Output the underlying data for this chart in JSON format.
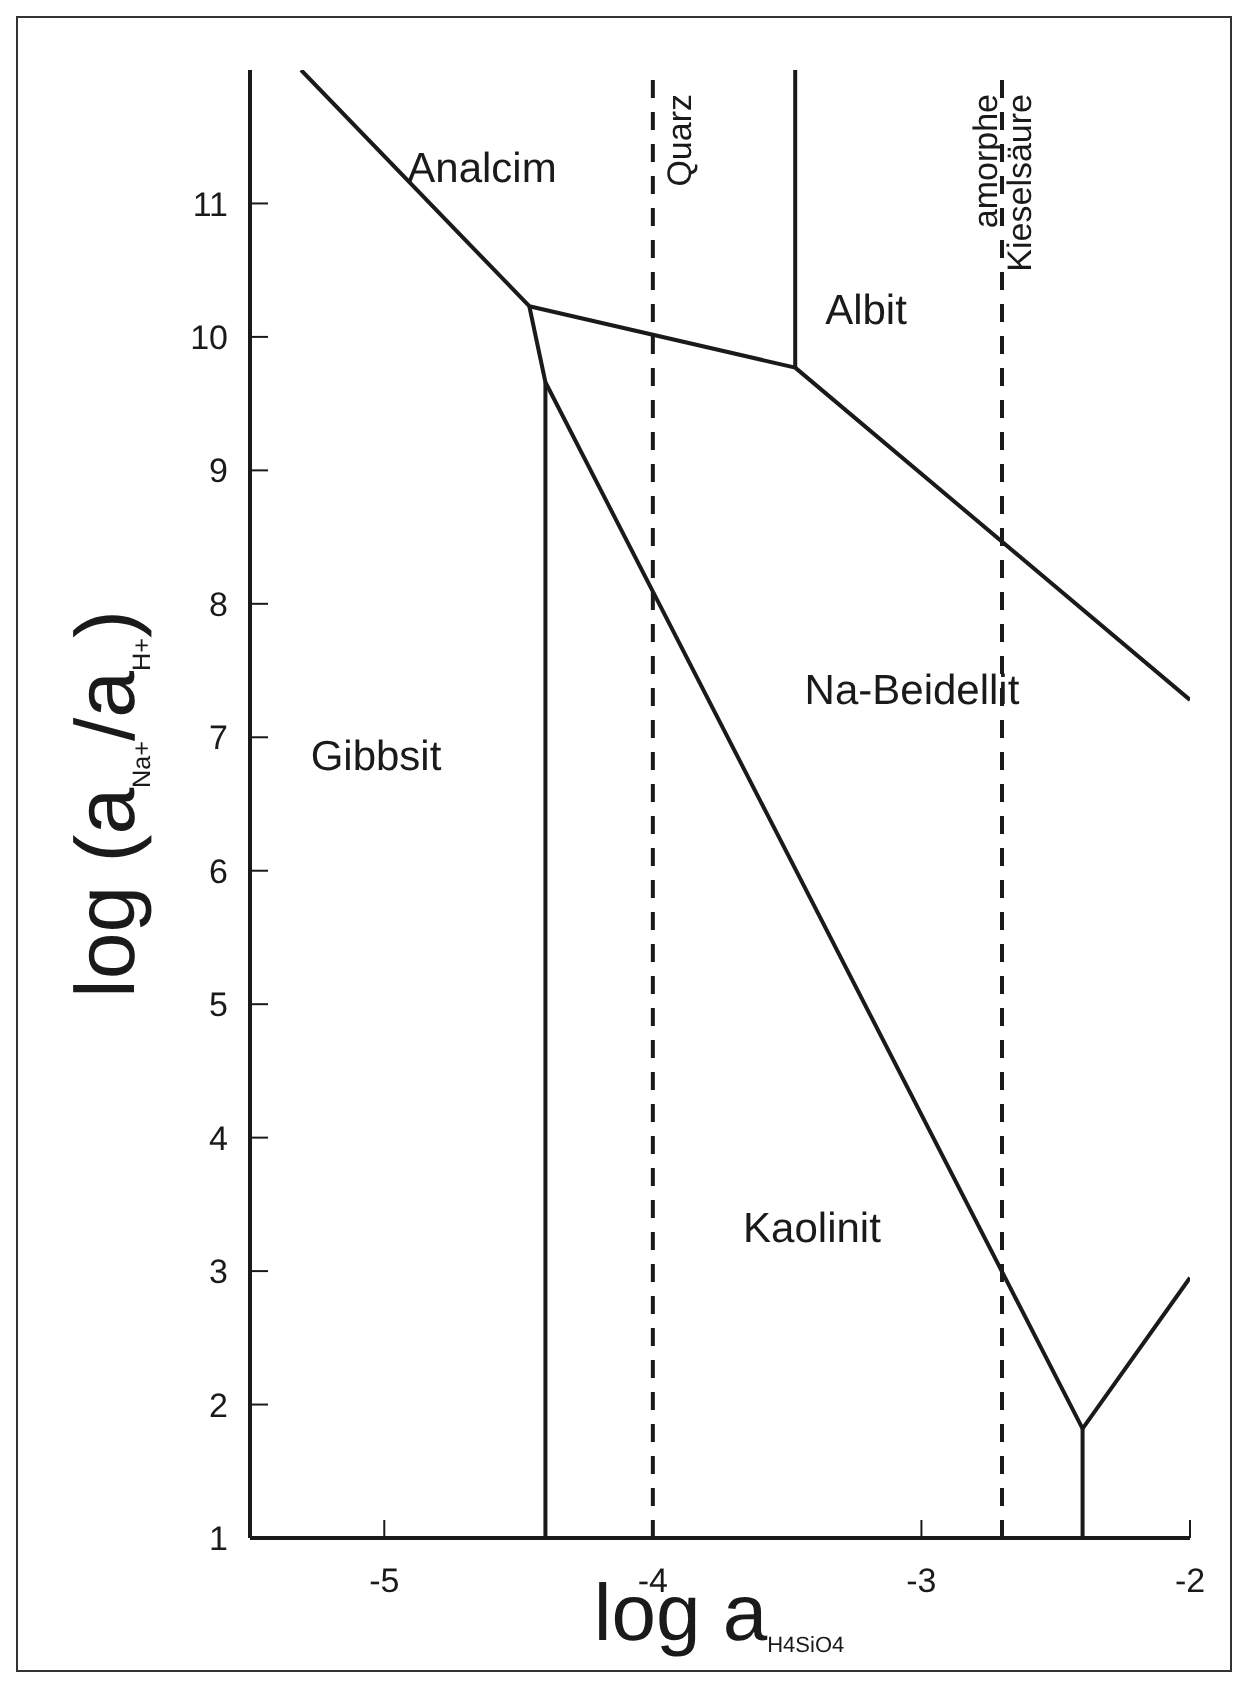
{
  "chart_data": {
    "type": "line",
    "xlabel": "log a$_{H4SiO4}$",
    "ylabel": "log (a$_{Na+}$/a$_{H+}$)",
    "xlim": [
      -5.5,
      -2
    ],
    "ylim": [
      1,
      12
    ],
    "xticks": [
      -5,
      -4,
      -3,
      -2
    ],
    "yticks": [
      1,
      2,
      3,
      4,
      5,
      6,
      7,
      8,
      9,
      10,
      11
    ],
    "marker": "none",
    "line_style": "solid",
    "series": [
      {
        "color": "#1a1a1a",
        "x": [
          -5.31,
          -4.46,
          -3.47,
          -2
        ],
        "values": [
          12,
          10.23,
          9.77,
          7.28
        ]
      },
      {
        "color": "#1a1a1a",
        "x": [
          -3.47,
          -3.47
        ],
        "values": [
          9.77,
          12
        ]
      },
      {
        "color": "#1a1a1a",
        "x": [
          -4.46,
          -4.4,
          -2.4,
          -2
        ],
        "values": [
          10.23,
          9.66,
          1.82,
          2.95
        ]
      },
      {
        "color": "#1a1a1a",
        "x": [
          -4.4,
          -4.4
        ],
        "values": [
          9.66,
          1
        ]
      },
      {
        "color": "#1a1a1a",
        "x": [
          -2.4,
          -2.4
        ],
        "values": [
          1.82,
          1
        ]
      }
    ],
    "ref_lines": [
      {
        "axis": "x",
        "value": -4,
        "label": "Quarz",
        "color": "#1a1a1a",
        "line_style": "dashed"
      },
      {
        "axis": "x",
        "value": -2.7,
        "label": "amorphe Kieselsäure",
        "color": "#1a1a1a",
        "line_style": "dashed"
      }
    ],
    "annotations": [
      "Analcim",
      "Albit",
      "Na-Beidellit",
      "Gibbsit",
      "Kaolinit"
    ]
  }
}
